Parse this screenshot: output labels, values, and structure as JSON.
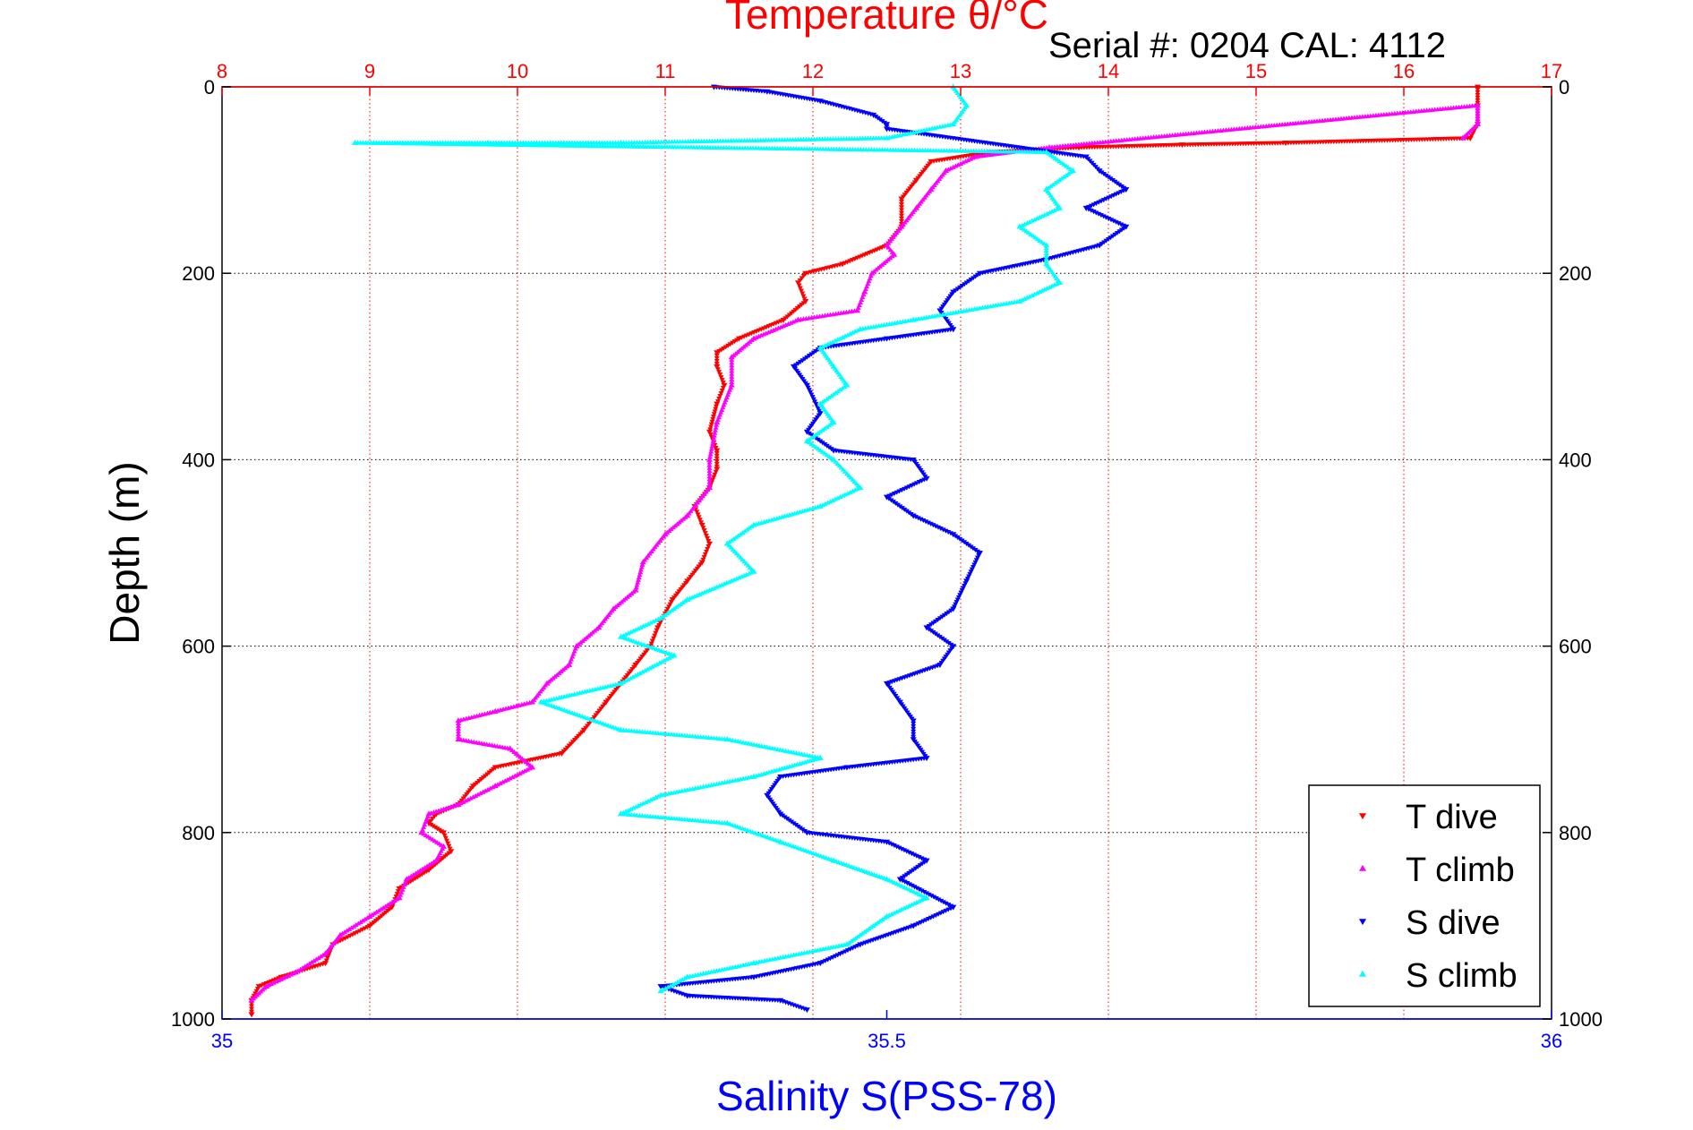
{
  "chart_data": {
    "type": "scatter",
    "top_axis": {
      "label": "Temperature θ/°C",
      "range": [
        8,
        17
      ],
      "ticks": [
        8,
        9,
        10,
        11,
        12,
        13,
        14,
        15,
        16,
        17
      ],
      "color": "#ff0000"
    },
    "bottom_axis": {
      "label": "Salinity S(PSS-78)",
      "range": [
        35,
        36
      ],
      "ticks": [
        35,
        35.5,
        36
      ],
      "color": "#0000ff"
    },
    "y_axis": {
      "label": "Depth (m)",
      "range": [
        0,
        1000
      ],
      "reversed": true,
      "ticks": [
        0,
        200,
        400,
        600,
        800,
        1000
      ]
    },
    "annotation": "Serial #: 0204  CAL: 4112",
    "grid": true,
    "legend_position": "bottom-right",
    "series": [
      {
        "name": "T dive",
        "axis": "temperature",
        "color": "#ff0000",
        "marker": "triangle-down",
        "points": [
          [
            16.5,
            0
          ],
          [
            16.5,
            20
          ],
          [
            16.5,
            40
          ],
          [
            16.45,
            55
          ],
          [
            15.2,
            60
          ],
          [
            14.5,
            62
          ],
          [
            13.8,
            65
          ],
          [
            13.2,
            70
          ],
          [
            12.8,
            80
          ],
          [
            12.7,
            100
          ],
          [
            12.6,
            120
          ],
          [
            12.6,
            150
          ],
          [
            12.5,
            170
          ],
          [
            12.2,
            190
          ],
          [
            11.95,
            200
          ],
          [
            11.9,
            210
          ],
          [
            11.95,
            230
          ],
          [
            11.8,
            250
          ],
          [
            11.5,
            270
          ],
          [
            11.35,
            285
          ],
          [
            11.35,
            300
          ],
          [
            11.4,
            320
          ],
          [
            11.35,
            340
          ],
          [
            11.3,
            370
          ],
          [
            11.35,
            390
          ],
          [
            11.35,
            410
          ],
          [
            11.3,
            430
          ],
          [
            11.2,
            450
          ],
          [
            11.25,
            470
          ],
          [
            11.3,
            490
          ],
          [
            11.25,
            510
          ],
          [
            11.15,
            530
          ],
          [
            11.05,
            550
          ],
          [
            10.95,
            580
          ],
          [
            10.9,
            600
          ],
          [
            10.8,
            620
          ],
          [
            10.7,
            640
          ],
          [
            10.6,
            660
          ],
          [
            10.45,
            690
          ],
          [
            10.3,
            715
          ],
          [
            9.85,
            730
          ],
          [
            9.7,
            750
          ],
          [
            9.6,
            770
          ],
          [
            9.45,
            780
          ],
          [
            9.4,
            790
          ],
          [
            9.5,
            800
          ],
          [
            9.55,
            820
          ],
          [
            9.4,
            840
          ],
          [
            9.2,
            860
          ],
          [
            9.15,
            880
          ],
          [
            9.0,
            900
          ],
          [
            8.75,
            920
          ],
          [
            8.7,
            940
          ],
          [
            8.4,
            955
          ],
          [
            8.25,
            965
          ],
          [
            8.2,
            980
          ],
          [
            8.2,
            995
          ]
        ]
      },
      {
        "name": "T climb",
        "axis": "temperature",
        "color": "#ff00ff",
        "marker": "triangle-up",
        "points": [
          [
            16.4,
            55
          ],
          [
            16.5,
            40
          ],
          [
            16.5,
            20
          ],
          [
            13.6,
            65
          ],
          [
            13.1,
            75
          ],
          [
            12.9,
            90
          ],
          [
            12.8,
            110
          ],
          [
            12.7,
            130
          ],
          [
            12.6,
            150
          ],
          [
            12.5,
            170
          ],
          [
            12.55,
            180
          ],
          [
            12.4,
            200
          ],
          [
            12.35,
            220
          ],
          [
            12.3,
            240
          ],
          [
            11.9,
            250
          ],
          [
            11.6,
            270
          ],
          [
            11.45,
            290
          ],
          [
            11.45,
            320
          ],
          [
            11.35,
            360
          ],
          [
            11.3,
            400
          ],
          [
            11.3,
            430
          ],
          [
            11.15,
            460
          ],
          [
            11.0,
            480
          ],
          [
            10.85,
            510
          ],
          [
            10.8,
            540
          ],
          [
            10.65,
            560
          ],
          [
            10.55,
            580
          ],
          [
            10.4,
            600
          ],
          [
            10.35,
            620
          ],
          [
            10.2,
            640
          ],
          [
            10.1,
            660
          ],
          [
            9.85,
            670
          ],
          [
            9.6,
            680
          ],
          [
            9.6,
            700
          ],
          [
            9.95,
            710
          ],
          [
            10.1,
            730
          ],
          [
            9.85,
            750
          ],
          [
            9.6,
            770
          ],
          [
            9.4,
            780
          ],
          [
            9.35,
            800
          ],
          [
            9.5,
            815
          ],
          [
            9.45,
            830
          ],
          [
            9.25,
            850
          ],
          [
            9.2,
            870
          ],
          [
            9.0,
            890
          ],
          [
            8.8,
            910
          ],
          [
            8.7,
            930
          ],
          [
            8.5,
            950
          ],
          [
            8.3,
            965
          ],
          [
            8.2,
            980
          ]
        ]
      },
      {
        "name": "S dive",
        "axis": "salinity",
        "color": "#0000ff",
        "marker": "triangle-down",
        "points": [
          [
            35.37,
            0
          ],
          [
            35.41,
            5
          ],
          [
            35.45,
            15
          ],
          [
            35.49,
            30
          ],
          [
            35.5,
            40
          ],
          [
            35.5,
            45
          ],
          [
            35.65,
            75
          ],
          [
            35.66,
            90
          ],
          [
            35.68,
            110
          ],
          [
            35.65,
            130
          ],
          [
            35.68,
            150
          ],
          [
            35.66,
            170
          ],
          [
            35.62,
            185
          ],
          [
            35.57,
            200
          ],
          [
            35.55,
            220
          ],
          [
            35.54,
            240
          ],
          [
            35.55,
            260
          ],
          [
            35.5,
            270
          ],
          [
            35.45,
            280
          ],
          [
            35.43,
            300
          ],
          [
            35.44,
            320
          ],
          [
            35.45,
            350
          ],
          [
            35.44,
            370
          ],
          [
            35.46,
            390
          ],
          [
            35.52,
            400
          ],
          [
            35.53,
            420
          ],
          [
            35.5,
            440
          ],
          [
            35.52,
            460
          ],
          [
            35.55,
            480
          ],
          [
            35.57,
            500
          ],
          [
            35.56,
            530
          ],
          [
            35.55,
            560
          ],
          [
            35.53,
            580
          ],
          [
            35.55,
            600
          ],
          [
            35.54,
            620
          ],
          [
            35.5,
            640
          ],
          [
            35.51,
            660
          ],
          [
            35.52,
            680
          ],
          [
            35.52,
            700
          ],
          [
            35.53,
            720
          ],
          [
            35.47,
            730
          ],
          [
            35.42,
            740
          ],
          [
            35.41,
            760
          ],
          [
            35.42,
            780
          ],
          [
            35.44,
            800
          ],
          [
            35.5,
            810
          ],
          [
            35.53,
            830
          ],
          [
            35.51,
            850
          ],
          [
            35.55,
            880
          ],
          [
            35.52,
            900
          ],
          [
            35.48,
            920
          ],
          [
            35.45,
            940
          ],
          [
            35.4,
            955
          ],
          [
            35.33,
            965
          ],
          [
            35.35,
            975
          ],
          [
            35.42,
            980
          ],
          [
            35.44,
            990
          ]
        ]
      },
      {
        "name": "S climb",
        "axis": "salinity",
        "color": "#00ffff",
        "marker": "triangle-up",
        "points": [
          [
            35.55,
            0
          ],
          [
            35.56,
            20
          ],
          [
            35.55,
            40
          ],
          [
            35.5,
            55
          ],
          [
            35.3,
            60
          ],
          [
            35.2,
            60
          ],
          [
            35.1,
            60
          ],
          [
            35.62,
            70
          ],
          [
            35.64,
            90
          ],
          [
            35.62,
            110
          ],
          [
            35.63,
            130
          ],
          [
            35.6,
            150
          ],
          [
            35.62,
            170
          ],
          [
            35.62,
            190
          ],
          [
            35.63,
            210
          ],
          [
            35.6,
            230
          ],
          [
            35.52,
            250
          ],
          [
            35.48,
            260
          ],
          [
            35.45,
            280
          ],
          [
            35.46,
            300
          ],
          [
            35.47,
            320
          ],
          [
            35.45,
            340
          ],
          [
            35.46,
            360
          ],
          [
            35.44,
            380
          ],
          [
            35.46,
            400
          ],
          [
            35.48,
            430
          ],
          [
            35.45,
            450
          ],
          [
            35.4,
            470
          ],
          [
            35.38,
            490
          ],
          [
            35.4,
            520
          ],
          [
            35.35,
            550
          ],
          [
            35.33,
            570
          ],
          [
            35.3,
            590
          ],
          [
            35.34,
            610
          ],
          [
            35.3,
            640
          ],
          [
            35.24,
            660
          ],
          [
            35.3,
            690
          ],
          [
            35.38,
            700
          ],
          [
            35.45,
            720
          ],
          [
            35.4,
            740
          ],
          [
            35.33,
            760
          ],
          [
            35.3,
            780
          ],
          [
            35.38,
            790
          ],
          [
            35.42,
            810
          ],
          [
            35.46,
            830
          ],
          [
            35.5,
            850
          ],
          [
            35.53,
            870
          ],
          [
            35.5,
            890
          ],
          [
            35.47,
            920
          ],
          [
            35.4,
            940
          ],
          [
            35.35,
            955
          ],
          [
            35.33,
            970
          ]
        ]
      }
    ]
  }
}
